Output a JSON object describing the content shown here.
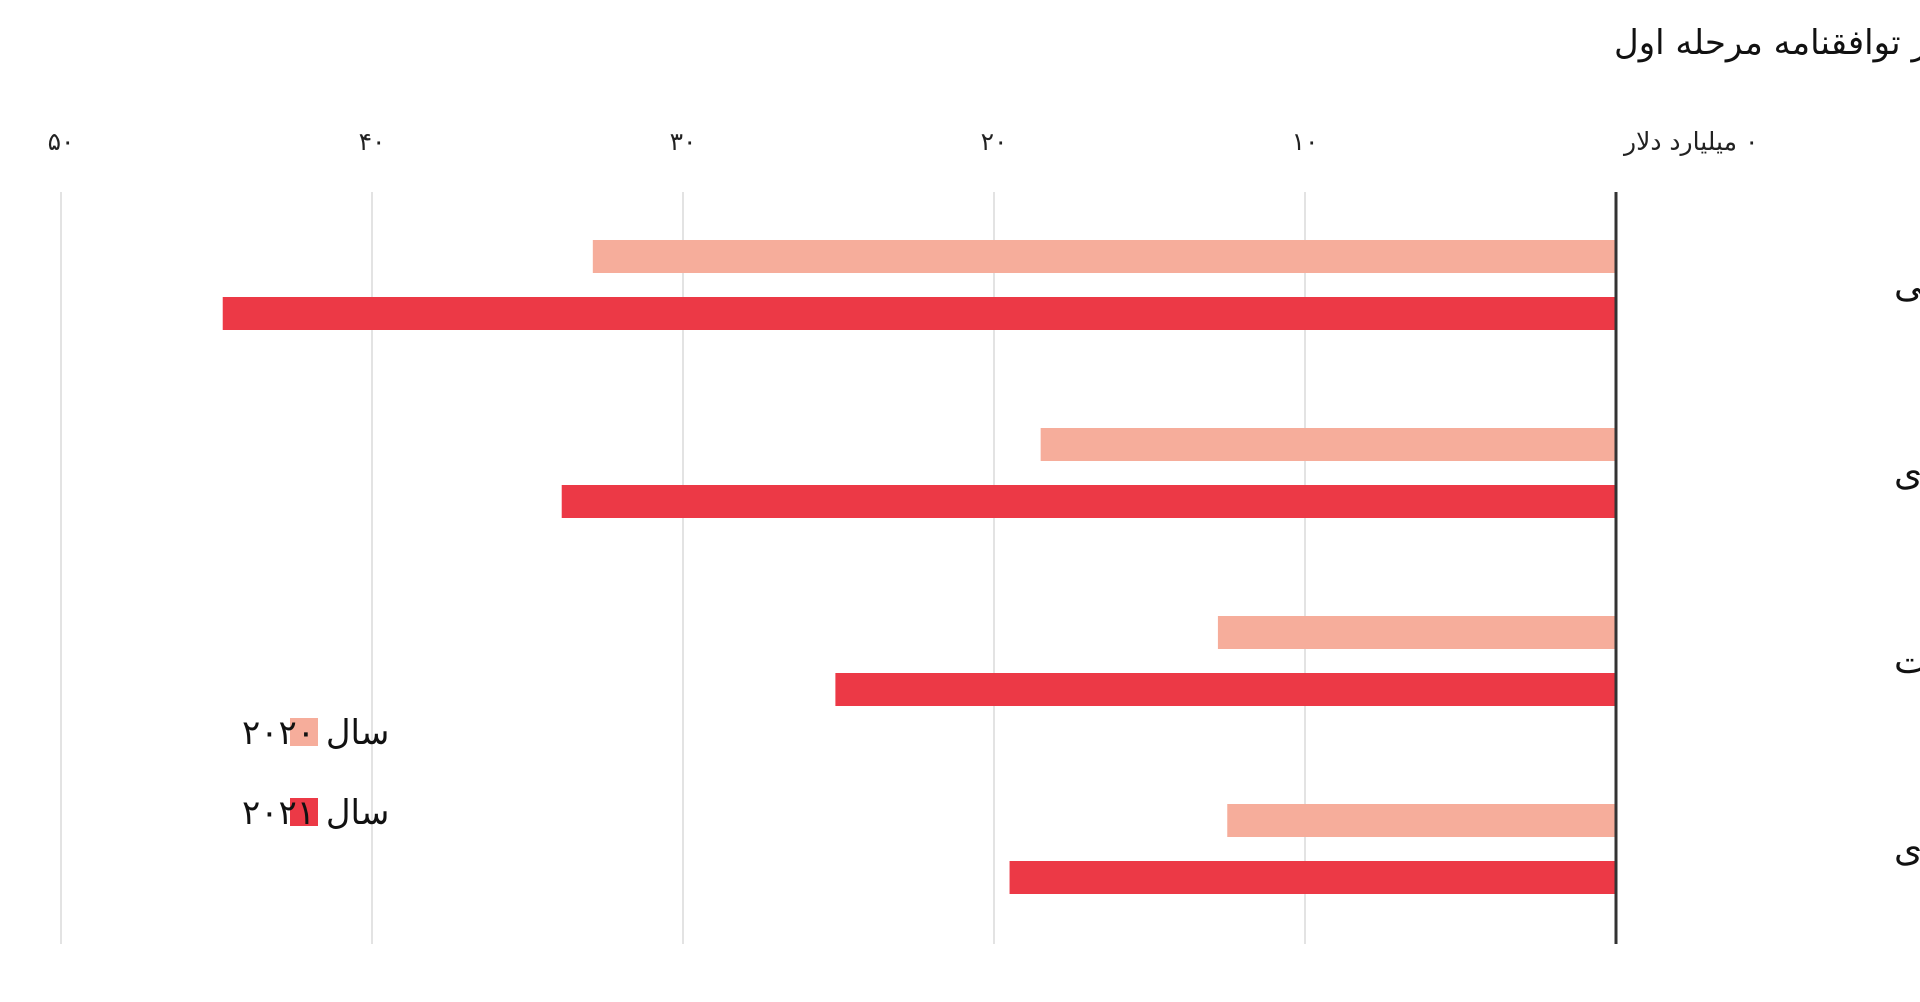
{
  "chart_data": {
    "type": "bar",
    "orientation": "horizontal",
    "direction": "rtl",
    "title": "پیشنهاد واردات چین از ایالات متحده قبل و بعد از توافقنامه مرحله اول",
    "unit_label": "میلیارد دلار",
    "xlim": [
      0,
      50
    ],
    "ticks": [
      0,
      10,
      20,
      30,
      40,
      50
    ],
    "tick_labels": [
      "۰ میلیارد دلار",
      "۱۰",
      "۲۰",
      "۳۰",
      "۴۰",
      "۵۰"
    ],
    "grid": true,
    "categories": [
      "کالاهای صنعتی",
      "انرژی",
      "خدمات",
      "کشاورزی"
    ],
    "series": [
      {
        "name": "سال ۲۰۲۰",
        "color": "#f6ad9b",
        "values": [
          32.9,
          18.5,
          12.8,
          12.5
        ]
      },
      {
        "name": "سال ۲۰۲۱",
        "color": "#ec3946",
        "values": [
          44.8,
          33.9,
          25.1,
          19.5
        ]
      }
    ],
    "legend_position": "bottom-left"
  }
}
